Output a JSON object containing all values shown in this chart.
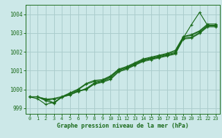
{
  "background_color": "#cce8e8",
  "grid_color": "#aacccc",
  "line_color": "#1a6a1a",
  "title": "Graphe pression niveau de la mer (hPa)",
  "xlim": [
    -0.5,
    23.5
  ],
  "ylim": [
    998.7,
    1004.5
  ],
  "yticks": [
    999,
    1000,
    1001,
    1002,
    1003,
    1004
  ],
  "xticks": [
    0,
    1,
    2,
    3,
    4,
    5,
    6,
    7,
    8,
    9,
    10,
    11,
    12,
    13,
    14,
    15,
    16,
    17,
    18,
    19,
    20,
    21,
    22,
    23
  ],
  "series": [
    [
      999.6,
      999.6,
      999.4,
      999.25,
      999.6,
      999.7,
      999.9,
      1000.05,
      1000.35,
      1000.45,
      1000.65,
      1001.05,
      1001.15,
      1001.35,
      1001.55,
      1001.65,
      1001.75,
      1001.85,
      1001.95,
      1002.75,
      1003.45,
      1004.1,
      1003.4,
      1003.4
    ],
    [
      999.6,
      999.6,
      999.5,
      999.28,
      999.6,
      999.78,
      999.93,
      999.98,
      1000.3,
      1000.42,
      1000.58,
      1000.98,
      1001.12,
      1001.32,
      1001.52,
      1001.62,
      1001.72,
      1001.82,
      1001.92,
      1002.72,
      1002.78,
      1003.02,
      1003.38,
      1003.38
    ],
    [
      999.6,
      999.5,
      999.2,
      999.32,
      999.58,
      999.73,
      999.88,
      1000.02,
      1000.28,
      1000.38,
      1000.53,
      1000.93,
      1001.08,
      1001.28,
      1001.48,
      1001.58,
      1001.68,
      1001.78,
      1001.88,
      1002.68,
      1002.73,
      1002.98,
      1003.33,
      1003.33
    ],
    [
      999.6,
      999.6,
      999.43,
      999.48,
      999.58,
      999.78,
      999.98,
      1000.28,
      1000.42,
      1000.48,
      1000.68,
      1001.02,
      1001.18,
      1001.38,
      1001.58,
      1001.68,
      1001.78,
      1001.88,
      1002.02,
      1002.78,
      1002.88,
      1003.08,
      1003.42,
      1003.42
    ],
    [
      999.6,
      999.6,
      999.48,
      999.52,
      999.62,
      999.82,
      1000.02,
      1000.32,
      1000.48,
      1000.52,
      1000.72,
      1001.08,
      1001.22,
      1001.42,
      1001.62,
      1001.72,
      1001.82,
      1001.92,
      1002.08,
      1002.82,
      1002.92,
      1003.12,
      1003.48,
      1003.48
    ]
  ]
}
